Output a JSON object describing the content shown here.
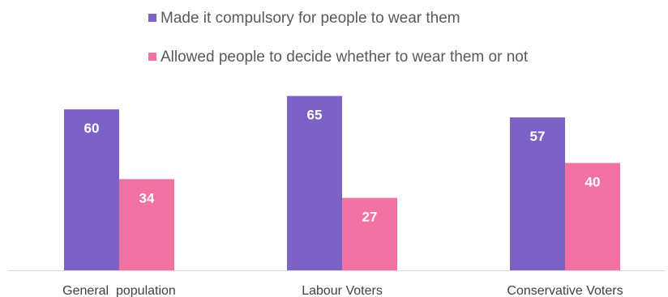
{
  "chart_data": {
    "type": "bar",
    "categories": [
      "General  population",
      "Labour Voters",
      "Conservative Voters"
    ],
    "series": [
      {
        "name": "Made it compulsory for people to wear them",
        "values": [
          60,
          65,
          57
        ],
        "color": "#7c62c4"
      },
      {
        "name": "Allowed people to decide whether to wear them or not",
        "values": [
          34,
          27,
          40
        ],
        "color": "#f272a4"
      }
    ],
    "title": "",
    "xlabel": "",
    "ylabel": "",
    "ylim": [
      0,
      70
    ],
    "grid": false,
    "legend_position": "top-center",
    "axis_line_color": "#d9d9d9"
  }
}
